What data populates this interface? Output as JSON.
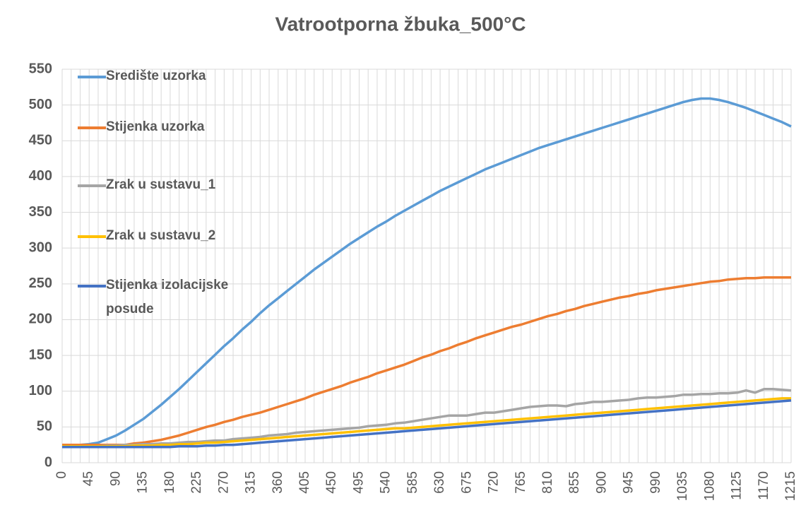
{
  "chart_data": {
    "type": "line",
    "title": "Vatrootporna žbuka_500°C",
    "categories": [
      0,
      null,
      null,
      45,
      null,
      null,
      90,
      null,
      null,
      135,
      null,
      null,
      180,
      null,
      null,
      225,
      null,
      null,
      270,
      null,
      null,
      315,
      null,
      null,
      360,
      null,
      null,
      405,
      null,
      null,
      450,
      null,
      null,
      495,
      null,
      null,
      540,
      null,
      null,
      585,
      null,
      null,
      630,
      null,
      null,
      675,
      null,
      null,
      720,
      null,
      null,
      765,
      null,
      null,
      810,
      null,
      null,
      855,
      null,
      null,
      900,
      null,
      null,
      945,
      null,
      null,
      990,
      null,
      null,
      1035,
      null,
      null,
      1080,
      null,
      null,
      1125,
      null,
      null,
      1170,
      null,
      null,
      1215
    ],
    "series": [
      {
        "name": "Središte uzorka",
        "color": "#5b9bd5",
        "values": [
          25,
          25,
          25,
          26,
          28,
          33,
          38,
          45,
          53,
          61,
          71,
          81,
          92,
          103,
          115,
          127,
          139,
          151,
          163,
          174,
          186,
          197,
          209,
          220,
          230,
          240,
          250,
          260,
          270,
          279,
          288,
          297,
          306,
          314,
          322,
          330,
          337,
          345,
          352,
          359,
          366,
          373,
          380,
          386,
          392,
          398,
          404,
          410,
          415,
          420,
          425,
          430,
          435,
          440,
          444,
          448,
          452,
          456,
          460,
          464,
          468,
          472,
          476,
          480,
          484,
          488,
          492,
          496,
          500,
          504,
          507,
          509,
          509,
          507,
          504,
          500,
          496,
          491,
          486,
          481,
          476,
          470
        ]
      },
      {
        "name": "Stijenka uzorka",
        "color": "#ed7d31",
        "values": [
          25,
          25,
          25,
          25,
          25,
          25,
          25,
          25,
          27,
          28,
          30,
          32,
          35,
          38,
          42,
          46,
          50,
          53,
          57,
          60,
          64,
          67,
          70,
          74,
          78,
          82,
          86,
          90,
          95,
          99,
          103,
          107,
          112,
          116,
          120,
          125,
          129,
          133,
          137,
          142,
          147,
          151,
          156,
          160,
          165,
          169,
          174,
          178,
          182,
          186,
          190,
          193,
          197,
          201,
          205,
          208,
          212,
          215,
          219,
          222,
          225,
          228,
          231,
          233,
          236,
          238,
          241,
          243,
          245,
          247,
          249,
          251,
          253,
          254,
          256,
          257,
          258,
          258,
          259,
          259,
          259,
          259
        ]
      },
      {
        "name": "Zrak u sustavu_1",
        "color": "#a5a5a5",
        "values": [
          23,
          23,
          23,
          23,
          23,
          24,
          24,
          25,
          25,
          26,
          26,
          27,
          27,
          28,
          29,
          29,
          30,
          31,
          31,
          33,
          34,
          35,
          36,
          38,
          39,
          40,
          42,
          43,
          44,
          45,
          46,
          47,
          48,
          49,
          51,
          52,
          53,
          55,
          56,
          58,
          60,
          62,
          64,
          66,
          66,
          66,
          68,
          70,
          70,
          72,
          74,
          76,
          78,
          79,
          80,
          80,
          79,
          82,
          83,
          85,
          85,
          86,
          87,
          88,
          90,
          91,
          91,
          92,
          93,
          95,
          95,
          96,
          96,
          97,
          97,
          98,
          101,
          98,
          103,
          103,
          102,
          101
        ]
      },
      {
        "name": "Zrak u sustavu_2",
        "color": "#ffc000",
        "values": [
          23,
          23,
          23,
          23,
          23,
          23,
          23,
          23,
          24,
          24,
          24,
          25,
          25,
          26,
          26,
          27,
          28,
          28,
          29,
          30,
          31,
          32,
          33,
          34,
          35,
          36,
          37,
          38,
          39,
          40,
          41,
          42,
          43,
          44,
          45,
          46,
          47,
          48,
          48,
          49,
          50,
          51,
          52,
          53,
          54,
          55,
          56,
          57,
          58,
          59,
          60,
          61,
          62,
          63,
          64,
          65,
          66,
          67,
          68,
          69,
          70,
          71,
          72,
          73,
          74,
          75,
          76,
          77,
          78,
          79,
          80,
          81,
          82,
          83,
          84,
          85,
          86,
          87,
          88,
          89,
          90,
          90
        ]
      },
      {
        "name": "Stijenka izolacijske posude",
        "color": "#4472c4",
        "values": [
          22,
          22,
          22,
          22,
          22,
          22,
          22,
          22,
          22,
          22,
          22,
          22,
          22,
          23,
          23,
          23,
          24,
          24,
          25,
          25,
          26,
          27,
          28,
          29,
          30,
          31,
          32,
          33,
          34,
          35,
          36,
          37,
          38,
          39,
          40,
          41,
          42,
          43,
          44,
          45,
          46,
          47,
          48,
          49,
          50,
          51,
          52,
          53,
          54,
          55,
          56,
          57,
          58,
          59,
          60,
          61,
          62,
          63,
          64,
          65,
          66,
          67,
          68,
          69,
          70,
          71,
          72,
          73,
          74,
          75,
          76,
          77,
          78,
          79,
          80,
          81,
          82,
          83,
          84,
          85,
          86,
          87
        ]
      }
    ],
    "ylim": [
      0,
      550
    ],
    "yticks": [
      0,
      50,
      100,
      150,
      200,
      250,
      300,
      350,
      400,
      450,
      500,
      550
    ],
    "grid": true,
    "legend": "left"
  }
}
